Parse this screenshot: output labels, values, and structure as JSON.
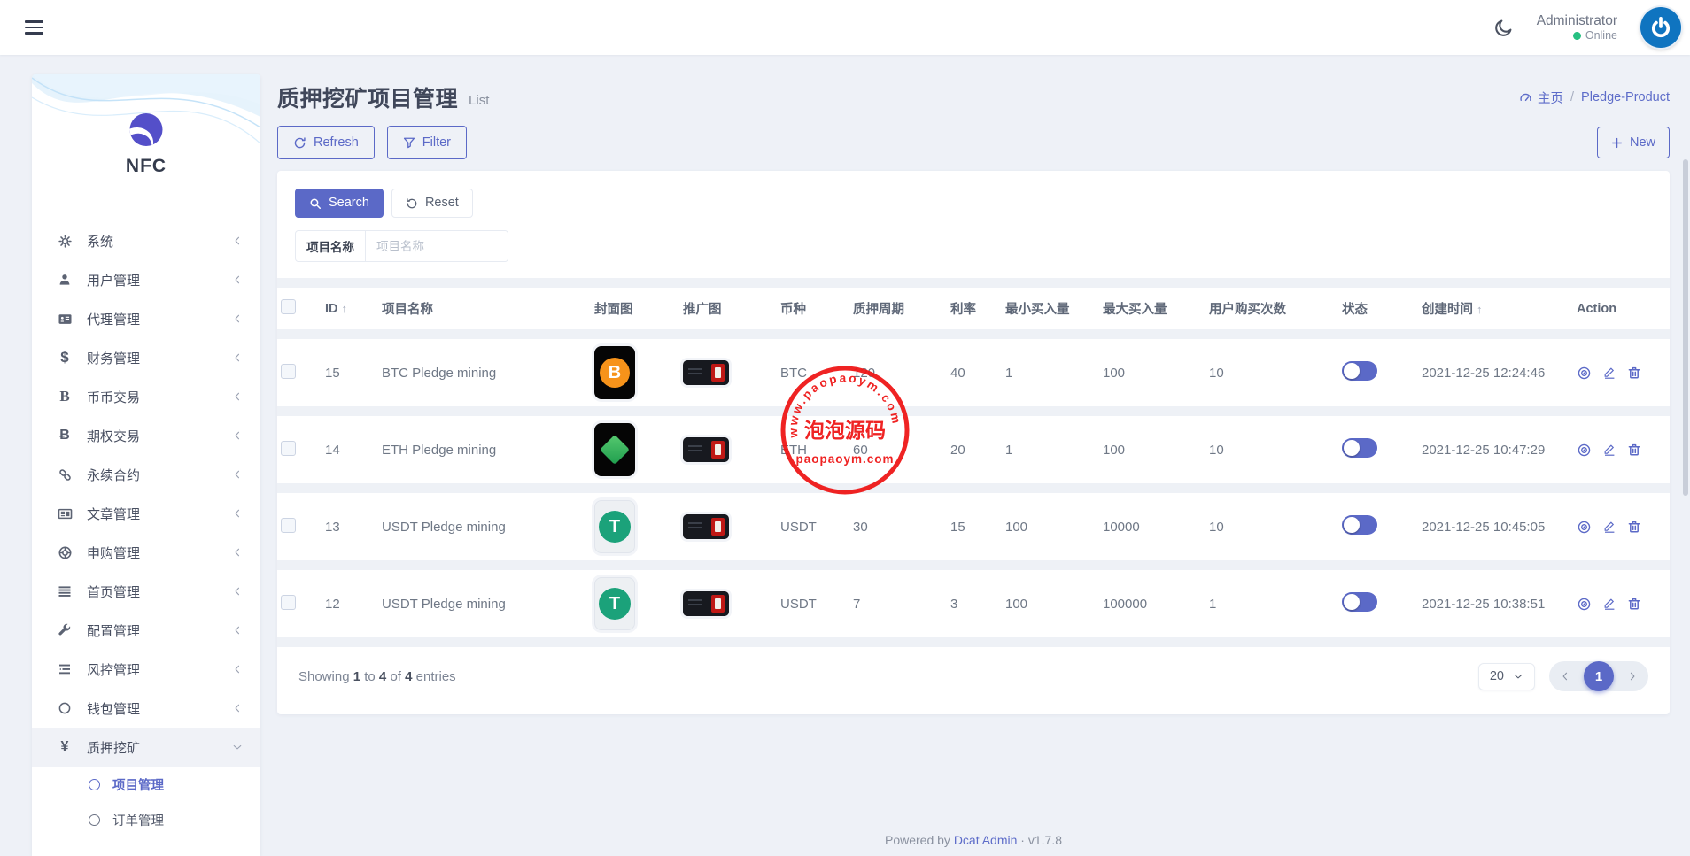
{
  "theme": {
    "primary": "#5b69c7",
    "stamp_red": "#ee1313",
    "online_green": "#27c082"
  },
  "navbar": {
    "user_name": "Administrator",
    "user_status": "Online"
  },
  "sidebar": {
    "brand": "NFC",
    "items": [
      {
        "key": "system",
        "label": "系统",
        "icon": "gear-icon"
      },
      {
        "key": "user-management",
        "label": "用户管理",
        "icon": "user-icon"
      },
      {
        "key": "agent-management",
        "label": "代理管理",
        "icon": "id-card-icon"
      },
      {
        "key": "finance-management",
        "label": "财务管理",
        "icon": "dollar-icon"
      },
      {
        "key": "spot-trade",
        "label": "币币交易",
        "icon": "letter-b-icon"
      },
      {
        "key": "options-trade",
        "label": "期权交易",
        "icon": "bitcoin-icon"
      },
      {
        "key": "perpetual-contract",
        "label": "永续合约",
        "icon": "link-icon"
      },
      {
        "key": "article-management",
        "label": "文章管理",
        "icon": "newspaper-icon"
      },
      {
        "key": "subscription-management",
        "label": "申购管理",
        "icon": "life-ring-icon"
      },
      {
        "key": "homepage-management",
        "label": "首页管理",
        "icon": "bars-icon"
      },
      {
        "key": "config-management",
        "label": "配置管理",
        "icon": "wrench-icon"
      },
      {
        "key": "risk-management",
        "label": "风控管理",
        "icon": "indent-icon"
      },
      {
        "key": "wallet-management",
        "label": "钱包管理",
        "icon": "circle-icon"
      },
      {
        "key": "pledge-mining",
        "label": "质押挖矿",
        "icon": "yen-icon",
        "expanded": true,
        "children": [
          {
            "key": "pledge-projects",
            "label": "项目管理",
            "active": true
          },
          {
            "key": "pledge-orders",
            "label": "订单管理",
            "active": false
          }
        ]
      }
    ]
  },
  "page": {
    "title": "质押挖矿项目管理",
    "subtitle": "List",
    "breadcrumb_home": "主页",
    "breadcrumb_sep": "/",
    "breadcrumb_current": "Pledge-Product"
  },
  "toolbar": {
    "refresh_label": "Refresh",
    "filter_label": "Filter",
    "new_label": "New"
  },
  "search": {
    "search_label": "Search",
    "reset_label": "Reset",
    "field_label": "项目名称",
    "field_placeholder": "项目名称"
  },
  "table": {
    "headers": [
      "ID",
      "项目名称",
      "封面图",
      "推广图",
      "币种",
      "质押周期",
      "利率",
      "最小买入量",
      "最大买入量",
      "用户购买次数",
      "状态",
      "创建时间",
      "Action"
    ],
    "sortable_headers": [
      "ID",
      "创建时间"
    ],
    "rows": [
      {
        "id": "15",
        "name": "BTC Pledge mining",
        "cover": "btc",
        "coin": "BTC",
        "period": "120",
        "rate": "40",
        "min_buy": "1",
        "max_buy": "100",
        "buy_times": "10",
        "status_on": true,
        "created": "2021-12-25 12:24:46"
      },
      {
        "id": "14",
        "name": "ETH Pledge mining",
        "cover": "eth",
        "coin": "ETH",
        "period": "60",
        "rate": "20",
        "min_buy": "1",
        "max_buy": "100",
        "buy_times": "10",
        "status_on": true,
        "created": "2021-12-25 10:47:29"
      },
      {
        "id": "13",
        "name": "USDT Pledge mining",
        "cover": "usdt",
        "coin": "USDT",
        "period": "30",
        "rate": "15",
        "min_buy": "100",
        "max_buy": "10000",
        "buy_times": "10",
        "status_on": true,
        "created": "2021-12-25 10:45:05"
      },
      {
        "id": "12",
        "name": "USDT Pledge mining",
        "cover": "usdt",
        "coin": "USDT",
        "period": "7",
        "rate": "3",
        "min_buy": "100",
        "max_buy": "100000",
        "buy_times": "1",
        "status_on": true,
        "created": "2021-12-25 10:38:51"
      }
    ]
  },
  "pagination": {
    "showing_word": "Showing",
    "from": "1",
    "to_word": "to",
    "to": "4",
    "of_word": "of",
    "total": "4",
    "entries_word": "entries",
    "per_page": "20",
    "current_page": "1"
  },
  "footer": {
    "powered_by": "Powered by",
    "brand_link": "Dcat Admin",
    "sep": "·",
    "version": "v1.7.8"
  },
  "watermark": {
    "arc_text": "www.paopaoym.com",
    "title": "泡泡源码",
    "subtitle": "paopaoym.com"
  }
}
